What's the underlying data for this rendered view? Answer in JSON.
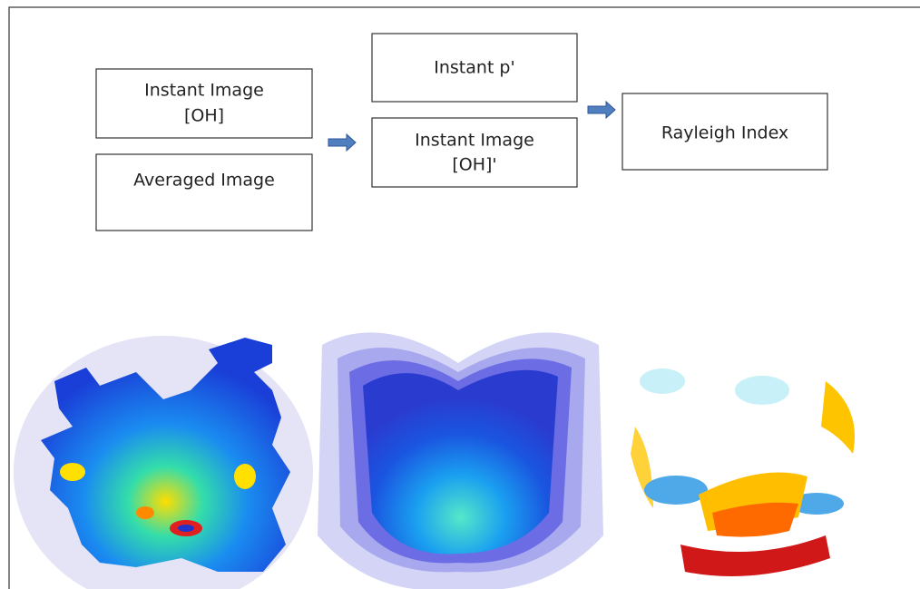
{
  "nodes": [
    {
      "lines": [
        "Instant Image",
        "[OH]"
      ]
    },
    {
      "lines": [
        "Averaged Image"
      ]
    },
    {
      "lines": [
        "Instant p'"
      ]
    },
    {
      "lines": [
        "Instant Image",
        "[OH]'"
      ]
    },
    {
      "lines": [
        "Rayleigh Index"
      ]
    }
  ]
}
